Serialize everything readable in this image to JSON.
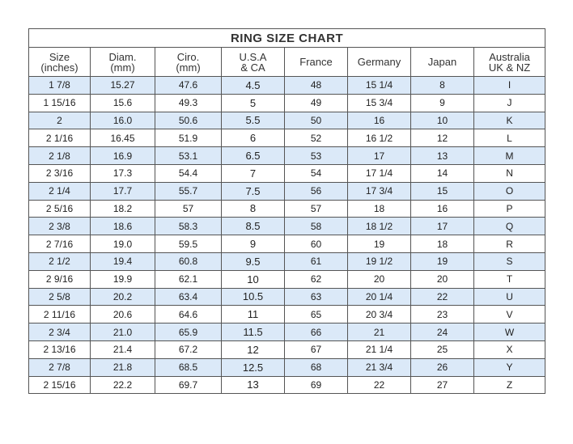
{
  "title": "RING SIZE CHART",
  "headers": [
    [
      "Size",
      "(inches)"
    ],
    [
      "Diam.",
      "(mm)"
    ],
    [
      "Ciro.",
      "(mm)"
    ],
    [
      "U.S.A",
      "& CA"
    ],
    [
      "France",
      ""
    ],
    [
      "Germany",
      ""
    ],
    [
      "Japan",
      ""
    ],
    [
      "Australia",
      "UK & NZ"
    ]
  ],
  "row_highlight_color": "#dbe9f8",
  "rows": [
    [
      "1 7/8",
      "15.27",
      "47.6",
      "4.5",
      "48",
      "15 1/4",
      "8",
      "I"
    ],
    [
      "1 15/16",
      "15.6",
      "49.3",
      "5",
      "49",
      "15 3/4",
      "9",
      "J"
    ],
    [
      "2",
      "16.0",
      "50.6",
      "5.5",
      "50",
      "16",
      "10",
      "K"
    ],
    [
      "2 1/16",
      "16.45",
      "51.9",
      "6",
      "52",
      "16 1/2",
      "12",
      "L"
    ],
    [
      "2 1/8",
      "16.9",
      "53.1",
      "6.5",
      "53",
      "17",
      "13",
      "M"
    ],
    [
      "2 3/16",
      "17.3",
      "54.4",
      "7",
      "54",
      "17 1/4",
      "14",
      "N"
    ],
    [
      "2 1/4",
      "17.7",
      "55.7",
      "7.5",
      "56",
      "17 3/4",
      "15",
      "O"
    ],
    [
      "2 5/16",
      "18.2",
      "57",
      "8",
      "57",
      "18",
      "16",
      "P"
    ],
    [
      "2 3/8",
      "18.6",
      "58.3",
      "8.5",
      "58",
      "18 1/2",
      "17",
      "Q"
    ],
    [
      "2 7/16",
      "19.0",
      "59.5",
      "9",
      "60",
      "19",
      "18",
      "R"
    ],
    [
      "2 1/2",
      "19.4",
      "60.8",
      "9.5",
      "61",
      "19 1/2",
      "19",
      "S"
    ],
    [
      "2 9/16",
      "19.9",
      "62.1",
      "10",
      "62",
      "20",
      "20",
      "T"
    ],
    [
      "2 5/8",
      "20.2",
      "63.4",
      "10.5",
      "63",
      "20 1/4",
      "22",
      "U"
    ],
    [
      "2 11/16",
      "20.6",
      "64.6",
      "11",
      "65",
      "20 3/4",
      "23",
      "V"
    ],
    [
      "2 3/4",
      "21.0",
      "65.9",
      "11.5",
      "66",
      "21",
      "24",
      "W"
    ],
    [
      "2 13/16",
      "21.4",
      "67.2",
      "12",
      "67",
      "21 1/4",
      "25",
      "X"
    ],
    [
      "2 7/8",
      "21.8",
      "68.5",
      "12.5",
      "68",
      "21 3/4",
      "26",
      "Y"
    ],
    [
      "2 15/16",
      "22.2",
      "69.7",
      "13",
      "69",
      "22",
      "27",
      "Z"
    ]
  ]
}
